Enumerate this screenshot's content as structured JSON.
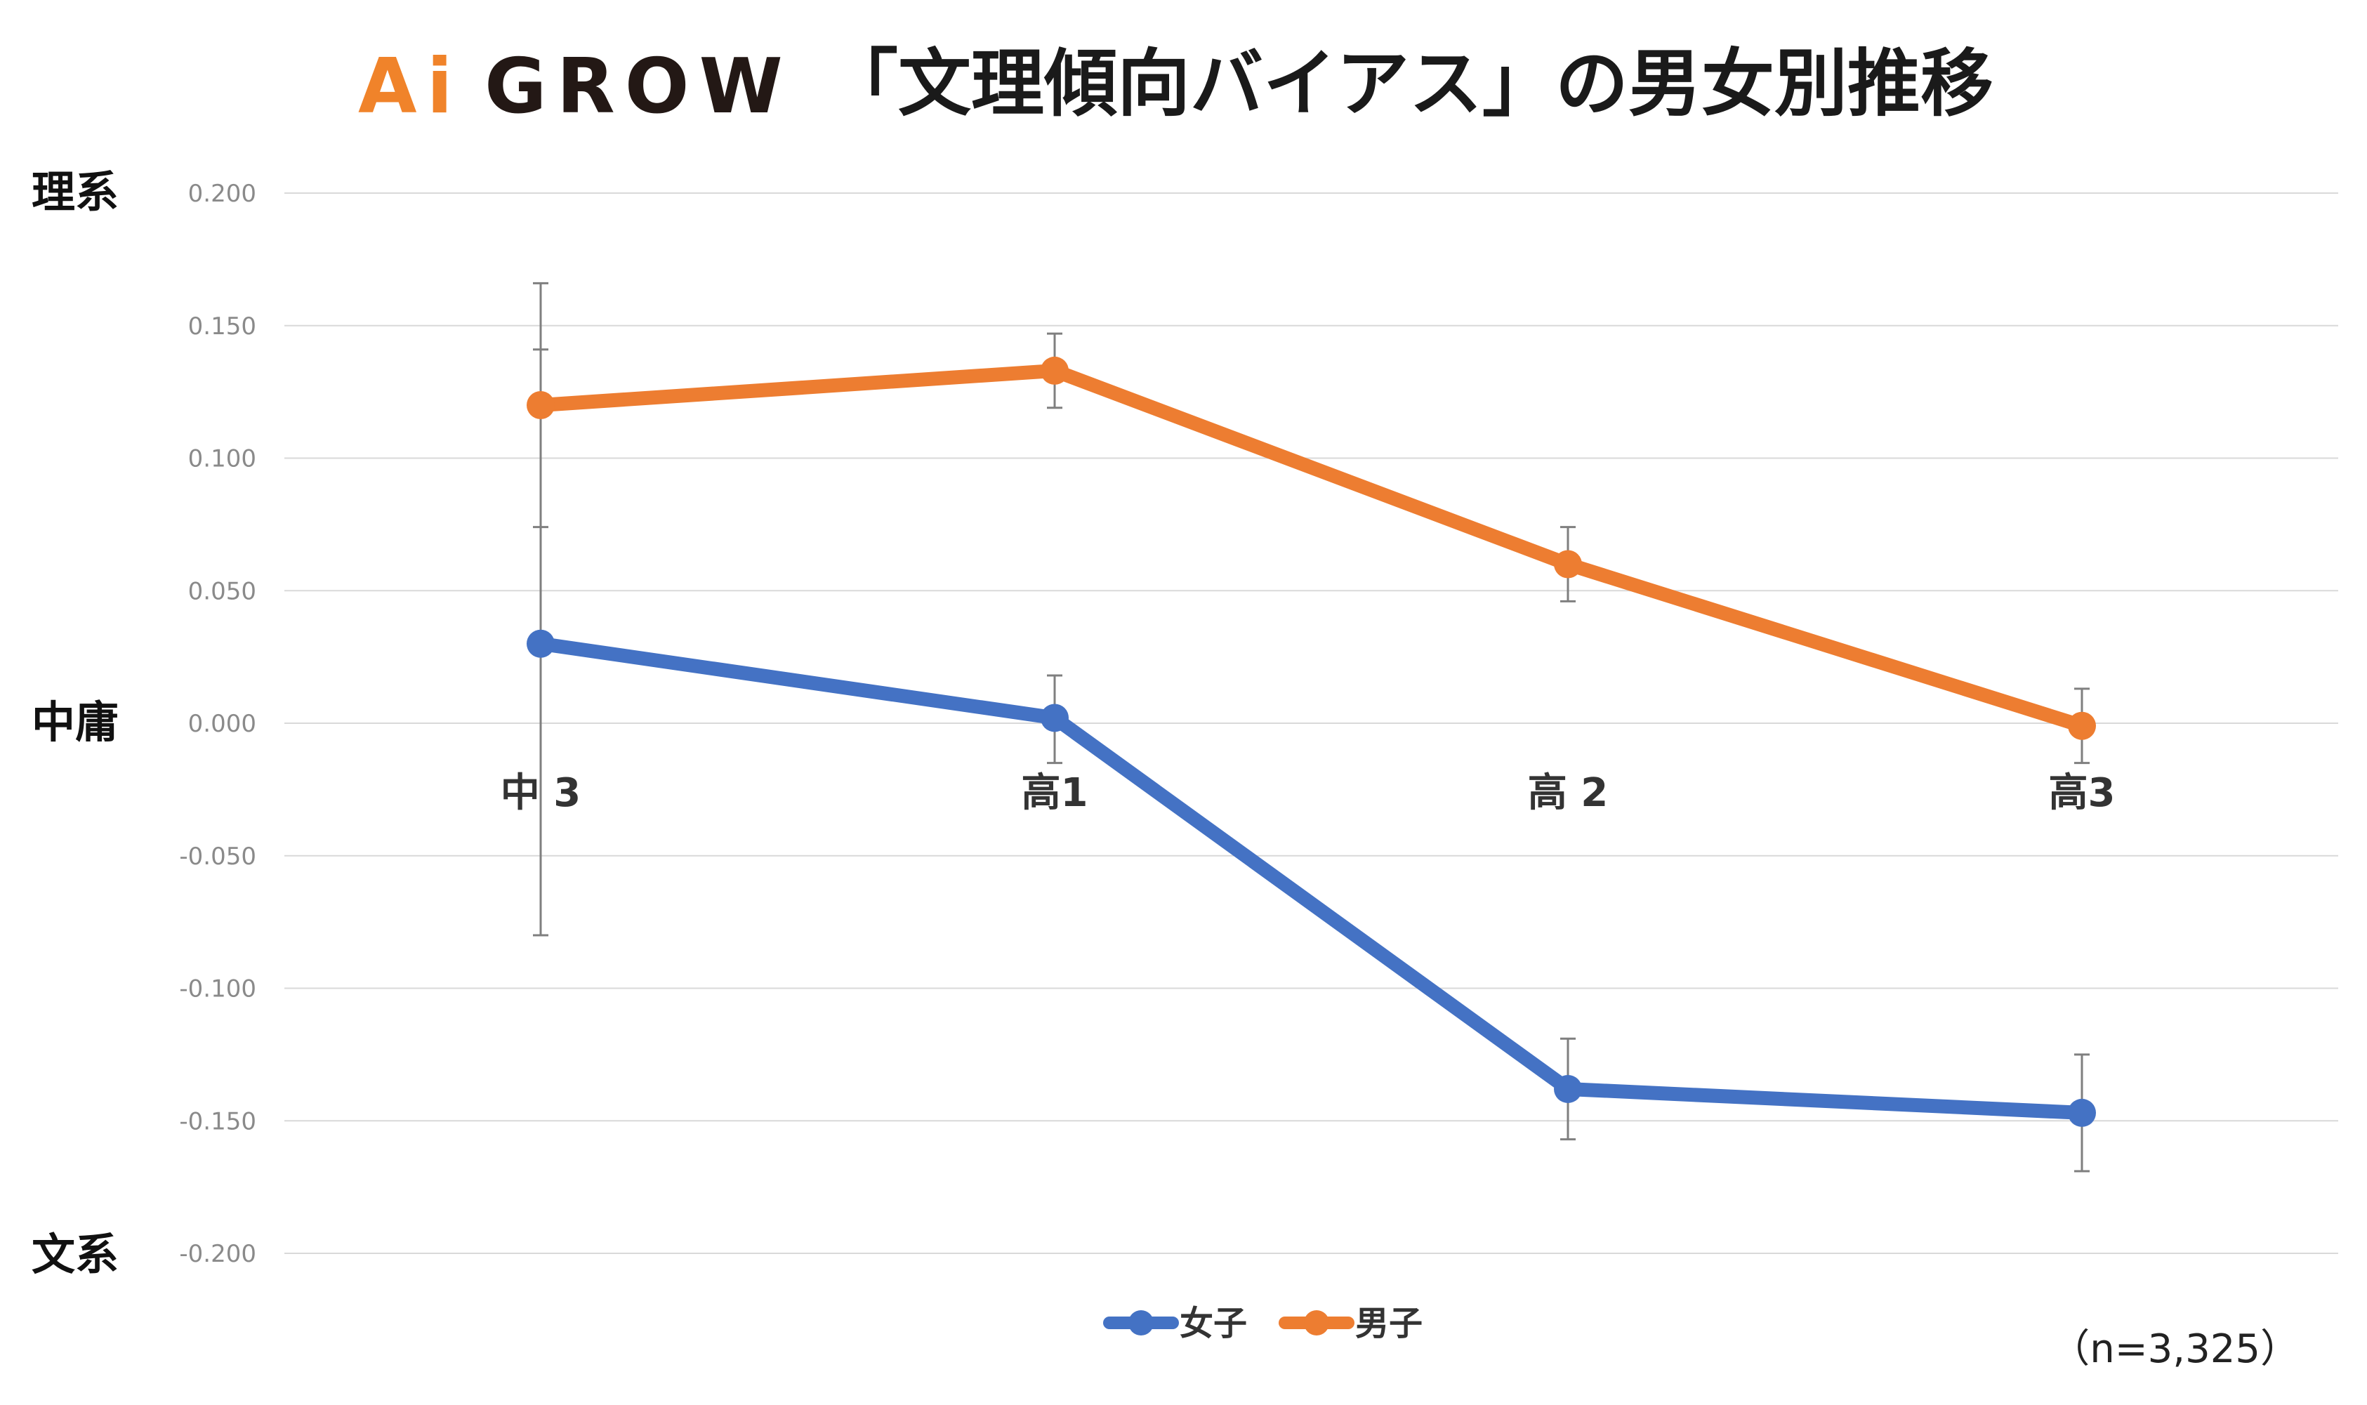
{
  "title": {
    "logo_prefix": "Ai",
    "logo_rest": "GROW",
    "text": "「文理傾向バイアス」の男女別推移",
    "logo_orange": "#f0832a",
    "logo_dark": "#231815"
  },
  "side_labels": {
    "top": "理系",
    "middle": "中庸",
    "bottom": "文系"
  },
  "note": "（n=3,325）",
  "chart_data": {
    "type": "line",
    "categories": [
      "中 3",
      "高1",
      "高 2",
      "高3"
    ],
    "ylim": [
      -0.2,
      0.2
    ],
    "yticks": [
      0.2,
      0.15,
      0.1,
      0.05,
      0.0,
      -0.05,
      -0.1,
      -0.15,
      -0.2
    ],
    "ytick_labels": [
      "0.200",
      "0.150",
      "0.100",
      "0.050",
      "0.000",
      "-0.050",
      "-0.100",
      "-0.150",
      "-0.200"
    ],
    "grid": true,
    "legend_position": "bottom-center",
    "series": [
      {
        "name": "女子",
        "color": "#4472c4",
        "values": [
          0.03,
          0.002,
          -0.138,
          -0.147
        ],
        "error_low": [
          -0.08,
          -0.015,
          -0.157,
          -0.169
        ],
        "error_high": [
          0.141,
          0.018,
          -0.119,
          -0.125
        ]
      },
      {
        "name": "男子",
        "color": "#ed7d31",
        "values": [
          0.12,
          0.133,
          0.06,
          -0.001
        ],
        "error_low": [
          0.074,
          0.119,
          0.046,
          -0.015
        ],
        "error_high": [
          0.166,
          0.147,
          0.074,
          0.013
        ]
      }
    ]
  }
}
